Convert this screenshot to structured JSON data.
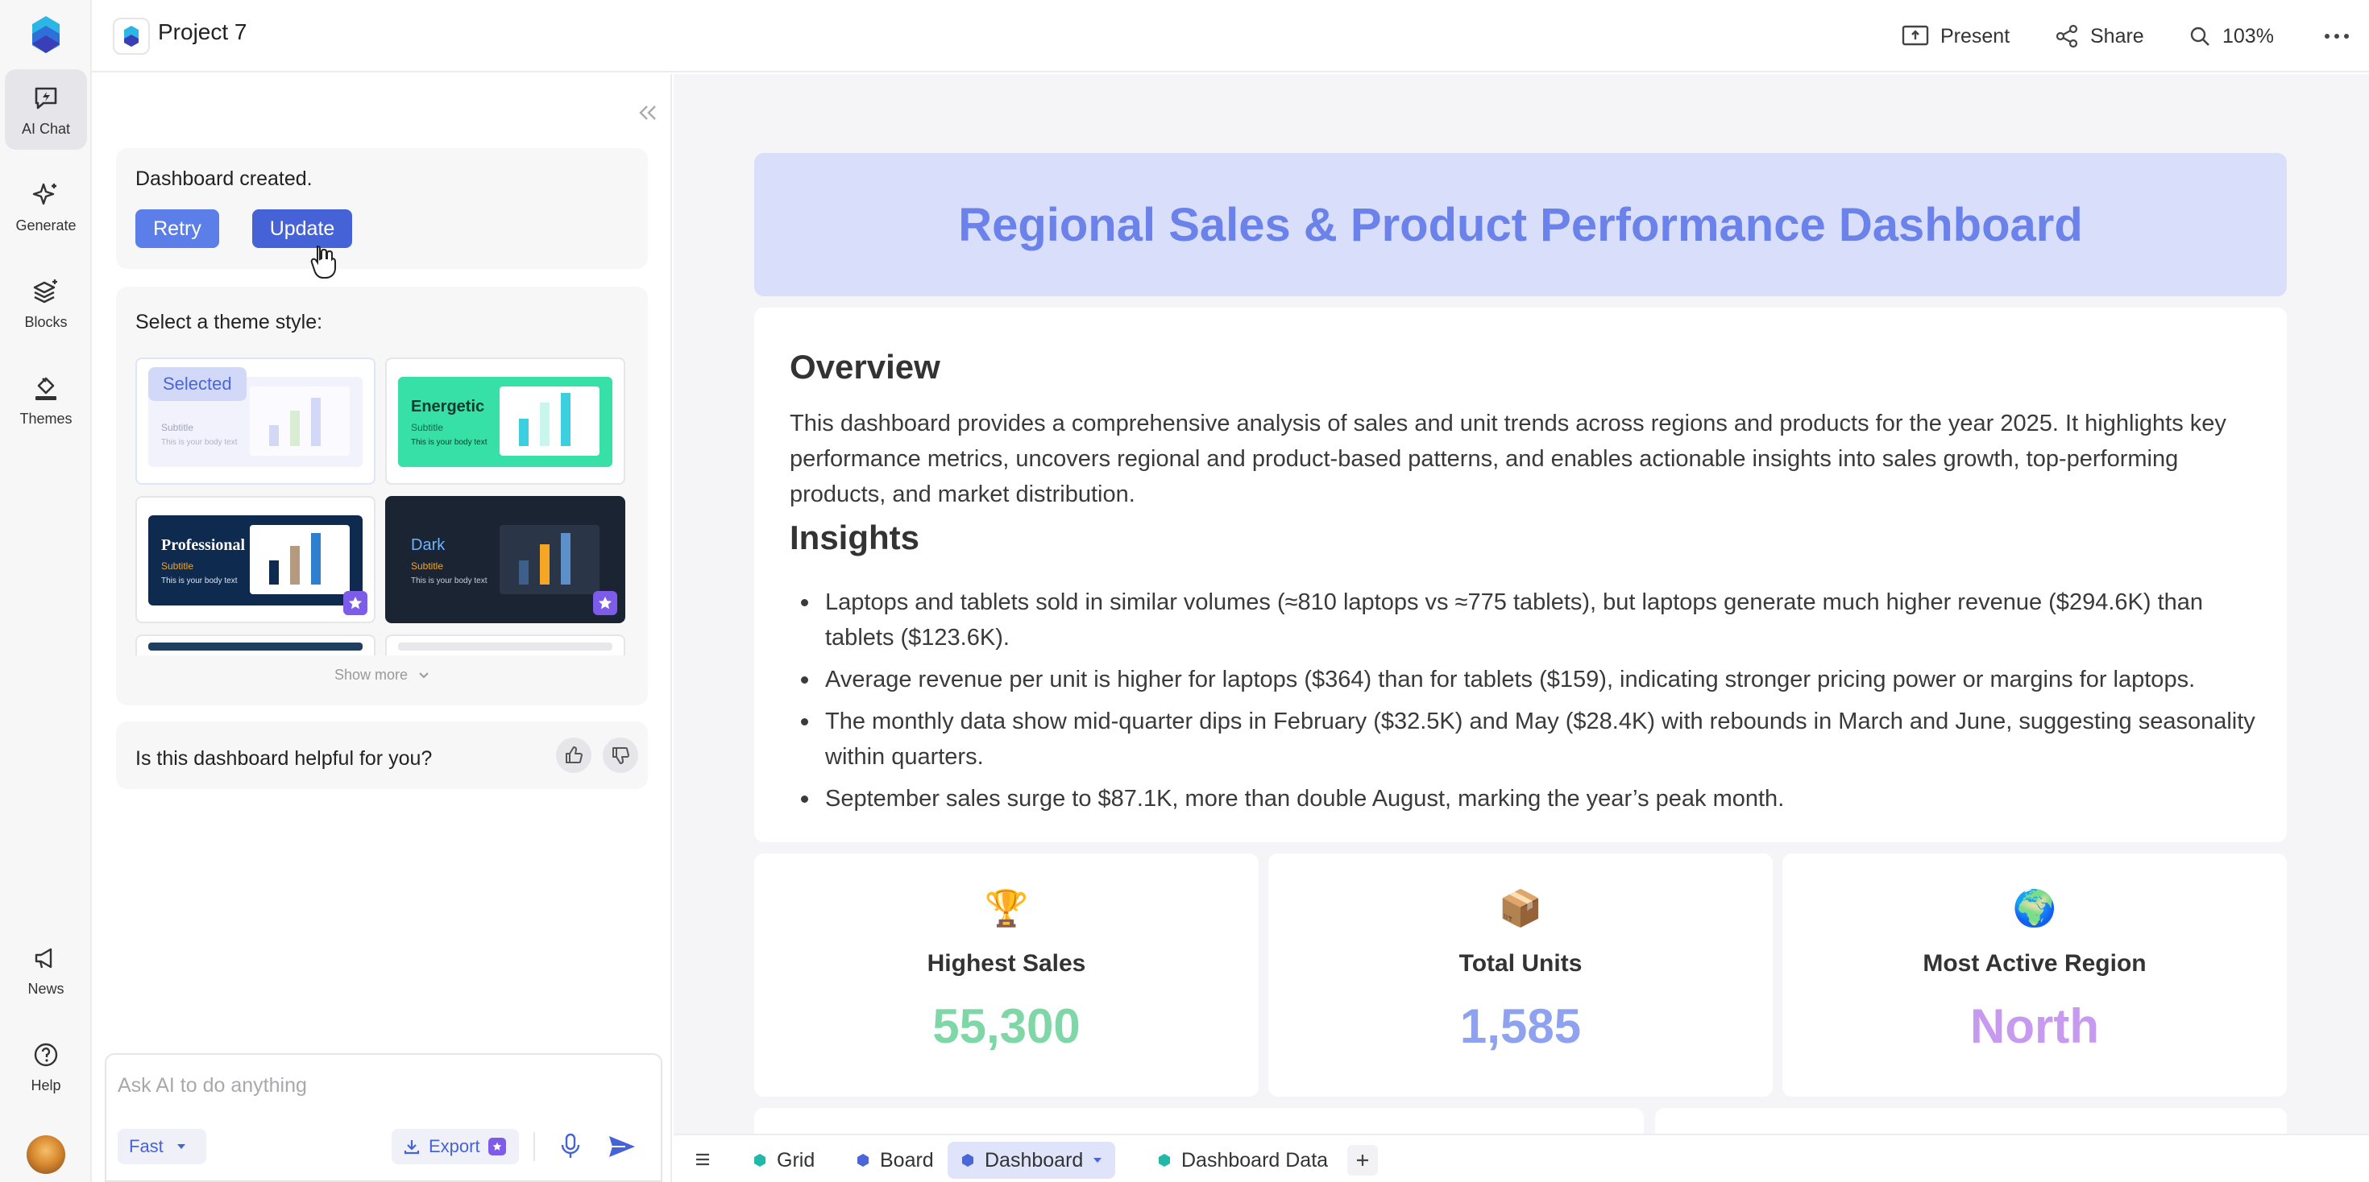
{
  "rail": {
    "items": [
      {
        "label": "AI Chat",
        "icon": "chat-lightning-icon"
      },
      {
        "label": "Generate",
        "icon": "sparkle-icon"
      },
      {
        "label": "Blocks",
        "icon": "layers-icon"
      },
      {
        "label": "Themes",
        "icon": "paint-bucket-icon"
      },
      {
        "label": "News",
        "icon": "megaphone-icon"
      },
      {
        "label": "Help",
        "icon": "help-circle-icon"
      }
    ]
  },
  "topbar": {
    "project_title": "Project 7",
    "present_label": "Present",
    "share_label": "Share",
    "zoom_label": "103%"
  },
  "chat": {
    "message": "Dashboard created.",
    "retry_label": "Retry",
    "update_label": "Update",
    "theme_prompt": "Select a theme style:",
    "themes": [
      {
        "name": "Selected",
        "subtitle": "Subtitle",
        "body": "This is your body text"
      },
      {
        "name": "Energetic",
        "subtitle": "Subtitle",
        "body": "This is your body text"
      },
      {
        "name": "Professional",
        "subtitle": "Subtitle",
        "body": "This is your body text"
      },
      {
        "name": "Dark",
        "subtitle": "Subtitle",
        "body": "This is your body text"
      }
    ],
    "show_more_label": "Show more",
    "feedback_question": "Is this dashboard helpful for you?",
    "input_placeholder": "Ask AI to do anything",
    "mode_label": "Fast",
    "export_label": "Export"
  },
  "dashboard": {
    "title": "Regional Sales & Product Performance Dashboard",
    "overview_heading": "Overview",
    "overview_text": "This dashboard provides a comprehensive analysis of sales and unit trends across regions and products for the year 2025. It highlights key performance metrics, uncovers regional and product-based patterns, and enables actionable insights into sales growth, top-performing products, and market distribution.",
    "insights_heading": "Insights",
    "insights": [
      "Laptops and tablets sold in similar volumes (≈810 laptops vs ≈775 tablets), but laptops generate much higher revenue ($294.6K) than tablets ($123.6K).",
      "Average revenue per unit is higher for laptops ($364) than for tablets ($159), indicating stronger pricing power or margins for laptops.",
      "The monthly data show mid-quarter dips in February ($32.5K) and May ($28.4K) with rebounds in March and June, suggesting seasonality within quarters.",
      "September sales surge to $87.1K, more than double August, marking the year’s peak month."
    ],
    "kpis": [
      {
        "icon": "🏆",
        "label": "Highest Sales",
        "value": "55,300",
        "color": "#7fd6a6"
      },
      {
        "icon": "📦",
        "label": "Total Units",
        "value": "1,585",
        "color": "#8ea2ef"
      },
      {
        "icon": "🌍",
        "label": "Most Active Region",
        "value": "North",
        "color": "#c79af0"
      }
    ]
  },
  "tabs": [
    {
      "label": "Grid",
      "color": "#22b8a8"
    },
    {
      "label": "Board",
      "color": "#4a66d8"
    },
    {
      "label": "Dashboard",
      "color": "#4a66d8"
    },
    {
      "label": "Dashboard Data",
      "color": "#22b8a8"
    }
  ]
}
